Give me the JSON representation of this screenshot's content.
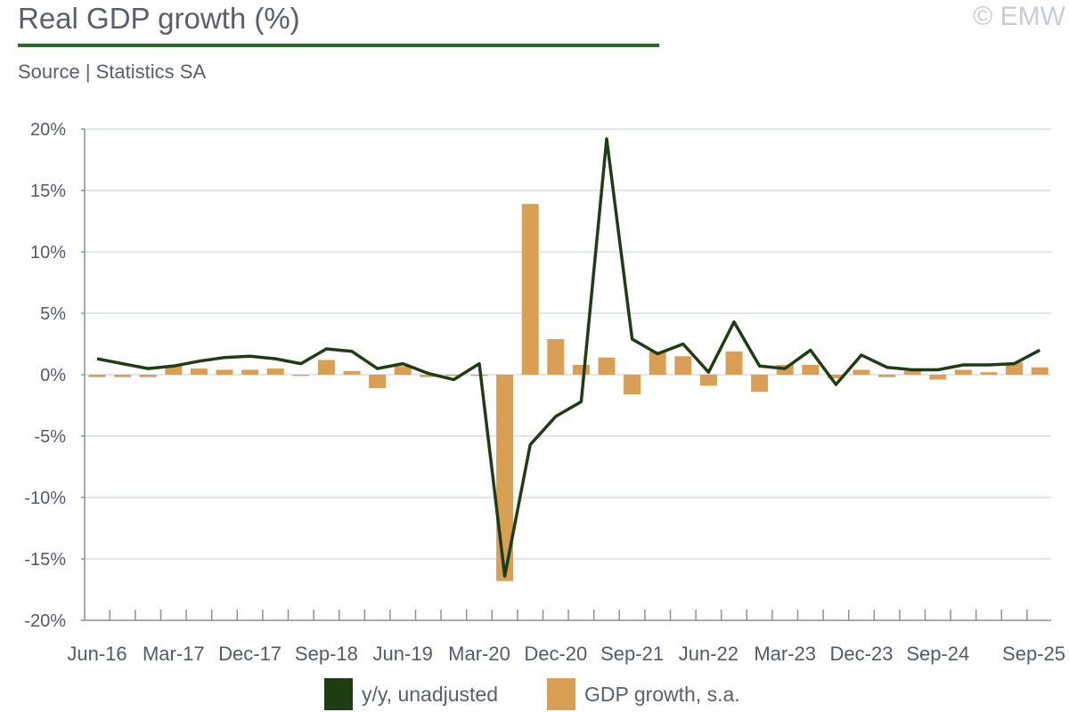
{
  "header": {
    "title": "Real GDP growth (%)",
    "source": "Source | Statistics SA",
    "copyright": "© EMW"
  },
  "colors": {
    "accent": "#2e6b2a",
    "line": "#1f3d12",
    "bar": "#d9a055",
    "grid": "#d5dde6",
    "axis": "#8a8f99"
  },
  "chart_data": {
    "type": "bar",
    "ylim": [
      -20,
      20
    ],
    "yticks": [
      20,
      15,
      10,
      5,
      0,
      -5,
      -10,
      -15,
      -20
    ],
    "ytick_labels": [
      "20%",
      "15%",
      "10%",
      "5%",
      "0%",
      "-5%",
      "-10%",
      "-15%",
      "-20%"
    ],
    "grid": true,
    "legend_position": "bottom",
    "xtick_labels": [
      "Jun-16",
      "Mar-17",
      "Dec-17",
      "Sep-18",
      "Jun-19",
      "Mar-20",
      "Dec-20",
      "Sep-21",
      "Jun-22",
      "Mar-23",
      "Dec-23",
      "Sep-24",
      "Sep-25"
    ],
    "categories": [
      "Jun-16",
      "Sep-16",
      "Dec-16",
      "Mar-17",
      "Jun-17",
      "Sep-17",
      "Dec-17",
      "Mar-18",
      "Jun-18",
      "Sep-18",
      "Dec-18",
      "Mar-19",
      "Jun-19",
      "Sep-19",
      "Dec-19",
      "Mar-20",
      "Jun-20",
      "Sep-20",
      "Dec-20",
      "Mar-21",
      "Jun-21",
      "Sep-21",
      "Dec-21",
      "Mar-22",
      "Jun-22",
      "Sep-22",
      "Dec-22",
      "Mar-23",
      "Jun-23",
      "Sep-23",
      "Dec-23",
      "Mar-24",
      "Jun-24",
      "Sep-24",
      "Dec-24",
      "Mar-25",
      "Jun-25",
      "Sep-25"
    ],
    "series": [
      {
        "name": "GDP growth, s.a.",
        "kind": "bar",
        "values": [
          -0.2,
          -0.2,
          -0.2,
          0.7,
          0.5,
          0.4,
          0.4,
          0.5,
          -0.1,
          1.2,
          0.3,
          -1.1,
          0.7,
          -0.2,
          -0.1,
          -0.1,
          -16.8,
          13.9,
          2.9,
          0.8,
          1.4,
          -1.6,
          1.9,
          1.5,
          -0.9,
          1.9,
          -1.4,
          0.8,
          0.8,
          -0.3,
          0.4,
          -0.2,
          0.3,
          -0.4,
          0.4,
          0.2,
          1.0,
          0.6
        ]
      },
      {
        "name": "y/y, unadjusted",
        "kind": "line",
        "values": [
          1.3,
          0.9,
          0.5,
          0.7,
          1.1,
          1.4,
          1.5,
          1.3,
          0.9,
          2.1,
          1.9,
          0.5,
          0.9,
          0.1,
          -0.4,
          0.9,
          -16.4,
          -5.7,
          -3.4,
          -2.2,
          19.2,
          2.9,
          1.7,
          2.5,
          0.2,
          4.3,
          0.7,
          0.5,
          2.0,
          -0.8,
          1.6,
          0.6,
          0.4,
          0.4,
          0.8,
          0.8,
          0.9,
          2.0
        ]
      }
    ]
  }
}
